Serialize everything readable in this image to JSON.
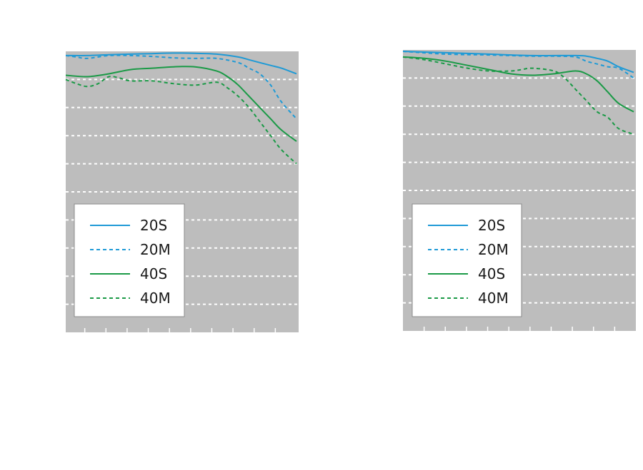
{
  "colors": {
    "background": "#ffffff",
    "plot_bg": "#bdbdbd",
    "grid": "#ffffff",
    "blue": "#1e9ad6",
    "green": "#1a9a46"
  },
  "legend_items": [
    {
      "label": "20S",
      "color": "blue",
      "style": "solid"
    },
    {
      "label": "20M",
      "color": "blue",
      "style": "dashed"
    },
    {
      "label": "40S",
      "color": "green",
      "style": "solid"
    },
    {
      "label": "40M",
      "color": "green",
      "style": "dashed"
    }
  ],
  "chart_data": [
    {
      "type": "line",
      "title": "",
      "xlabel": "",
      "ylabel": "",
      "xlim": [
        0,
        21.6
      ],
      "ylim": [
        0,
        1.0
      ],
      "x_tick_count": 11,
      "grid": "horizontal-dashed",
      "legend_placement": "bottom-left",
      "series": [
        {
          "name": "20S",
          "style": "solid",
          "x": [
            0,
            2,
            4,
            6,
            8,
            10,
            12,
            14,
            16,
            17,
            18,
            19,
            20,
            21.4
          ],
          "y": [
            0.985,
            0.985,
            0.988,
            0.99,
            0.992,
            0.994,
            0.993,
            0.99,
            0.98,
            0.97,
            0.96,
            0.95,
            0.94,
            0.92
          ]
        },
        {
          "name": "20M",
          "style": "dashed",
          "x": [
            0,
            1,
            2,
            4,
            6,
            8,
            10,
            12,
            14,
            16,
            17,
            18,
            19,
            20,
            21.4
          ],
          "y": [
            0.985,
            0.98,
            0.975,
            0.985,
            0.985,
            0.982,
            0.977,
            0.975,
            0.975,
            0.96,
            0.94,
            0.92,
            0.88,
            0.82,
            0.76
          ]
        },
        {
          "name": "40S",
          "style": "solid",
          "x": [
            0,
            2,
            4,
            6,
            8,
            10,
            12,
            14,
            15,
            16,
            17,
            18,
            19,
            20,
            21.4
          ],
          "y": [
            0.915,
            0.91,
            0.92,
            0.935,
            0.94,
            0.945,
            0.945,
            0.93,
            0.91,
            0.88,
            0.84,
            0.8,
            0.76,
            0.72,
            0.68
          ]
        },
        {
          "name": "40M",
          "style": "dashed",
          "x": [
            0,
            1,
            2,
            3,
            4,
            5,
            6,
            8,
            10,
            12,
            14,
            15,
            16,
            17,
            18,
            19,
            20,
            21.4
          ],
          "y": [
            0.9,
            0.885,
            0.875,
            0.885,
            0.91,
            0.905,
            0.895,
            0.895,
            0.885,
            0.88,
            0.89,
            0.87,
            0.84,
            0.8,
            0.75,
            0.7,
            0.65,
            0.6
          ]
        }
      ]
    },
    {
      "type": "line",
      "title": "",
      "xlabel": "",
      "ylabel": "",
      "xlim": [
        0,
        21.6
      ],
      "ylim": [
        0,
        1.0
      ],
      "x_tick_count": 11,
      "grid": "horizontal-dashed",
      "legend_placement": "bottom-left",
      "series": [
        {
          "name": "20S",
          "style": "solid",
          "x": [
            0,
            4,
            8,
            12,
            16,
            17,
            18,
            19,
            20,
            21.4
          ],
          "y": [
            0.995,
            0.99,
            0.985,
            0.98,
            0.98,
            0.978,
            0.97,
            0.96,
            0.94,
            0.92
          ]
        },
        {
          "name": "20M",
          "style": "dashed",
          "x": [
            0,
            4,
            8,
            12,
            14,
            16,
            17,
            18,
            19,
            20,
            21.4
          ],
          "y": [
            0.995,
            0.985,
            0.982,
            0.978,
            0.978,
            0.975,
            0.96,
            0.95,
            0.94,
            0.935,
            0.9
          ]
        },
        {
          "name": "40S",
          "style": "solid",
          "x": [
            0,
            2,
            4,
            6,
            8,
            10,
            12,
            14,
            16,
            17,
            18,
            19,
            20,
            21.4
          ],
          "y": [
            0.975,
            0.97,
            0.96,
            0.945,
            0.93,
            0.915,
            0.91,
            0.915,
            0.925,
            0.915,
            0.89,
            0.85,
            0.81,
            0.78
          ]
        },
        {
          "name": "40M",
          "style": "dashed",
          "x": [
            0,
            2,
            4,
            6,
            8,
            10,
            11,
            12,
            14,
            15,
            16,
            17,
            18,
            19,
            20,
            21.4
          ],
          "y": [
            0.975,
            0.965,
            0.95,
            0.935,
            0.925,
            0.925,
            0.93,
            0.935,
            0.925,
            0.9,
            0.86,
            0.82,
            0.78,
            0.76,
            0.72,
            0.7
          ]
        }
      ]
    }
  ]
}
